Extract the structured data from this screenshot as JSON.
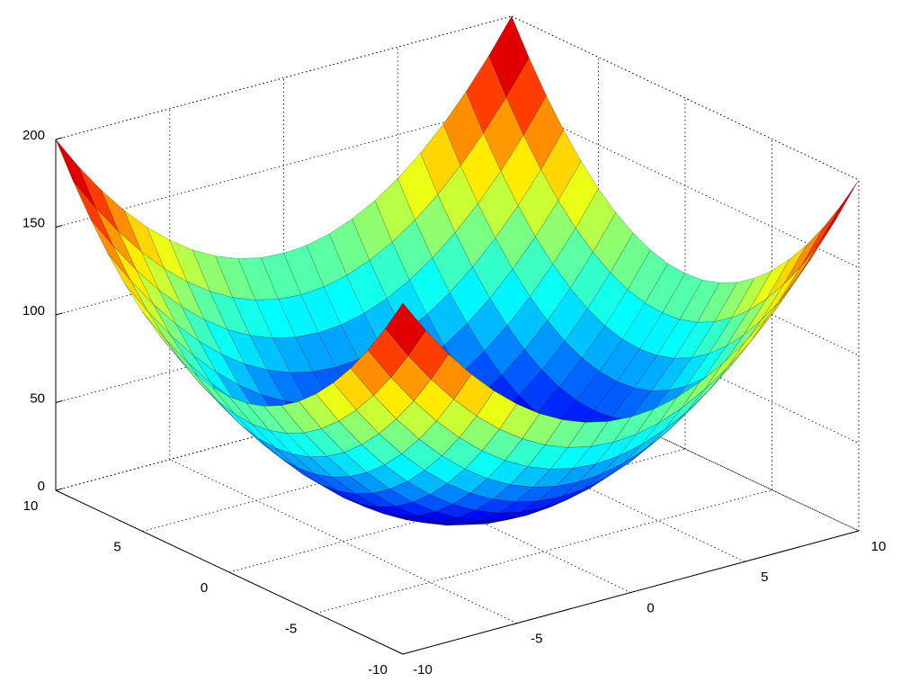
{
  "chart_data": {
    "type": "surface",
    "colormap": "jet",
    "grid": true,
    "x": [
      -10,
      -9,
      -8,
      -7,
      -6,
      -5,
      -4,
      -3,
      -2,
      -1,
      0,
      1,
      2,
      3,
      4,
      5,
      6,
      7,
      8,
      9,
      10
    ],
    "y": [
      -10,
      -9,
      -8,
      -7,
      -6,
      -5,
      -4,
      -3,
      -2,
      -1,
      0,
      1,
      2,
      3,
      4,
      5,
      6,
      7,
      8,
      9,
      10
    ],
    "z": [
      [
        200,
        181,
        164,
        149,
        136,
        125,
        116,
        109,
        104,
        101,
        100,
        101,
        104,
        109,
        116,
        125,
        136,
        149,
        164,
        181,
        200
      ],
      [
        181,
        162,
        145,
        130,
        117,
        106,
        97,
        90,
        85,
        82,
        81,
        82,
        85,
        90,
        97,
        106,
        117,
        130,
        145,
        162,
        181
      ],
      [
        164,
        145,
        128,
        113,
        100,
        89,
        80,
        73,
        68,
        65,
        64,
        65,
        68,
        73,
        80,
        89,
        100,
        113,
        128,
        145,
        164
      ],
      [
        149,
        130,
        113,
        98,
        85,
        74,
        65,
        58,
        53,
        50,
        49,
        50,
        53,
        58,
        65,
        74,
        85,
        98,
        113,
        130,
        149
      ],
      [
        136,
        117,
        100,
        85,
        72,
        61,
        52,
        45,
        40,
        37,
        36,
        37,
        40,
        45,
        52,
        61,
        72,
        85,
        100,
        117,
        136
      ],
      [
        125,
        106,
        89,
        74,
        61,
        50,
        41,
        34,
        29,
        26,
        25,
        26,
        29,
        34,
        41,
        50,
        61,
        74,
        89,
        106,
        125
      ],
      [
        116,
        97,
        80,
        65,
        52,
        41,
        32,
        25,
        20,
        17,
        16,
        17,
        20,
        25,
        32,
        41,
        52,
        65,
        80,
        97,
        116
      ],
      [
        109,
        90,
        73,
        58,
        45,
        34,
        25,
        18,
        13,
        10,
        9,
        10,
        13,
        18,
        25,
        34,
        45,
        58,
        73,
        90,
        109
      ],
      [
        104,
        85,
        68,
        53,
        40,
        29,
        20,
        13,
        8,
        5,
        4,
        5,
        8,
        13,
        20,
        29,
        40,
        53,
        68,
        85,
        104
      ],
      [
        101,
        82,
        65,
        50,
        37,
        26,
        17,
        10,
        5,
        2,
        1,
        2,
        5,
        10,
        17,
        26,
        37,
        50,
        65,
        82,
        101
      ],
      [
        100,
        81,
        64,
        49,
        36,
        25,
        16,
        9,
        4,
        1,
        0,
        1,
        4,
        9,
        16,
        25,
        36,
        49,
        64,
        81,
        100
      ],
      [
        101,
        82,
        65,
        50,
        37,
        26,
        17,
        10,
        5,
        2,
        1,
        2,
        5,
        10,
        17,
        26,
        37,
        50,
        65,
        82,
        101
      ],
      [
        104,
        85,
        68,
        53,
        40,
        29,
        20,
        13,
        8,
        5,
        4,
        5,
        8,
        13,
        20,
        29,
        40,
        53,
        68,
        85,
        104
      ],
      [
        109,
        90,
        73,
        58,
        45,
        34,
        25,
        18,
        13,
        10,
        9,
        10,
        13,
        18,
        25,
        34,
        45,
        58,
        73,
        90,
        109
      ],
      [
        116,
        97,
        80,
        65,
        52,
        41,
        32,
        25,
        20,
        17,
        16,
        17,
        20,
        25,
        32,
        41,
        52,
        65,
        80,
        97,
        116
      ],
      [
        125,
        106,
        89,
        74,
        61,
        50,
        41,
        34,
        29,
        26,
        25,
        26,
        29,
        34,
        41,
        50,
        61,
        74,
        89,
        106,
        125
      ],
      [
        136,
        117,
        100,
        85,
        72,
        61,
        52,
        45,
        40,
        37,
        36,
        37,
        40,
        45,
        52,
        61,
        72,
        85,
        100,
        117,
        136
      ],
      [
        149,
        130,
        113,
        98,
        85,
        74,
        65,
        58,
        53,
        50,
        49,
        50,
        53,
        58,
        65,
        74,
        85,
        98,
        113,
        130,
        149
      ],
      [
        164,
        145,
        128,
        113,
        100,
        89,
        80,
        73,
        68,
        65,
        64,
        65,
        68,
        73,
        80,
        89,
        100,
        113,
        128,
        145,
        164
      ],
      [
        181,
        162,
        145,
        130,
        117,
        106,
        97,
        90,
        85,
        82,
        81,
        82,
        85,
        90,
        97,
        106,
        117,
        130,
        145,
        162,
        181
      ],
      [
        200,
        181,
        164,
        149,
        136,
        125,
        116,
        109,
        104,
        101,
        100,
        101,
        104,
        109,
        116,
        125,
        136,
        149,
        164,
        181,
        200
      ]
    ],
    "xlim": [
      -10,
      10
    ],
    "ylim": [
      -10,
      10
    ],
    "zlim": [
      0,
      200
    ],
    "xticks": [
      -10,
      -5,
      0,
      5,
      10
    ],
    "yticks": [
      -10,
      -5,
      0,
      5,
      10
    ],
    "zticks": [
      0,
      50,
      100,
      150,
      200
    ]
  }
}
